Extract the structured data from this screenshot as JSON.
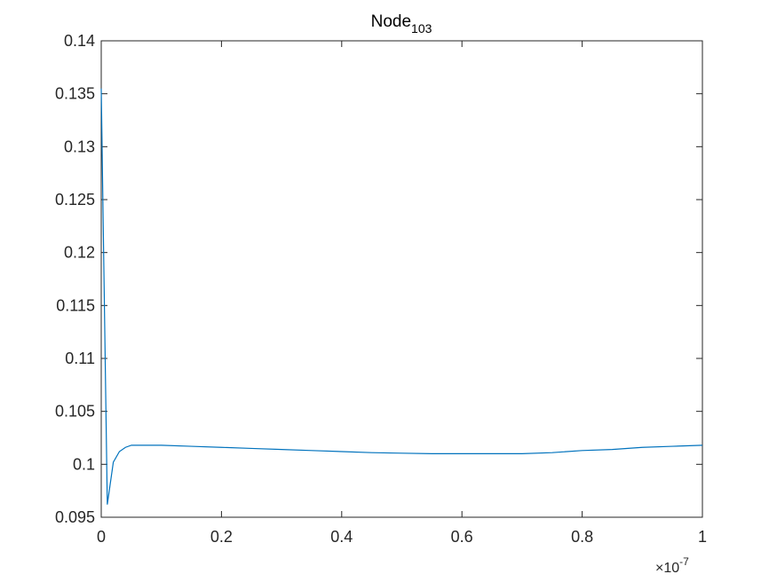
{
  "chart_data": {
    "type": "line",
    "title": "Node",
    "title_subscript": "103",
    "xlabel": "",
    "ylabel": "",
    "x_exponent_label": "10",
    "x_exponent_power": "-7",
    "x_exponent_symbol": "×",
    "xlim": [
      0,
      1
    ],
    "ylim": [
      0.095,
      0.14
    ],
    "grid": false,
    "legend": "none",
    "line_color": "#0072BD",
    "axis_color": "#262626",
    "x_ticks": [
      {
        "value": 0,
        "label": "0"
      },
      {
        "value": 0.2,
        "label": "0.2"
      },
      {
        "value": 0.4,
        "label": "0.4"
      },
      {
        "value": 0.6,
        "label": "0.6"
      },
      {
        "value": 0.8,
        "label": "0.8"
      },
      {
        "value": 1,
        "label": "1"
      }
    ],
    "y_ticks": [
      {
        "value": 0.095,
        "label": "0.095"
      },
      {
        "value": 0.1,
        "label": "0.1"
      },
      {
        "value": 0.105,
        "label": "0.105"
      },
      {
        "value": 0.11,
        "label": "0.11"
      },
      {
        "value": 0.115,
        "label": "0.115"
      },
      {
        "value": 0.12,
        "label": "0.12"
      },
      {
        "value": 0.125,
        "label": "0.125"
      },
      {
        "value": 0.13,
        "label": "0.13"
      },
      {
        "value": 0.135,
        "label": "0.135"
      },
      {
        "value": 0.14,
        "label": "0.14"
      }
    ],
    "series": [
      {
        "x": [
          0,
          0.0101,
          0.0201,
          0.0302,
          0.0403,
          0.0503,
          0.0604,
          0.0705,
          0.0805,
          0.1,
          0.15,
          0.2,
          0.25,
          0.3,
          0.35,
          0.4,
          0.45,
          0.5,
          0.55,
          0.6,
          0.65,
          0.7,
          0.75,
          0.8,
          0.85,
          0.9,
          0.95,
          1.0
        ],
        "y": [
          0.1355,
          0.0962,
          0.1002,
          0.1012,
          0.1016,
          0.1018,
          0.1018,
          0.1018,
          0.1018,
          0.1018,
          0.1017,
          0.1016,
          0.1015,
          0.1014,
          0.1013,
          0.1012,
          0.1011,
          0.10105,
          0.101,
          0.101,
          0.101,
          0.101,
          0.1011,
          0.1013,
          0.1014,
          0.1016,
          0.1017,
          0.1018
        ]
      }
    ]
  }
}
